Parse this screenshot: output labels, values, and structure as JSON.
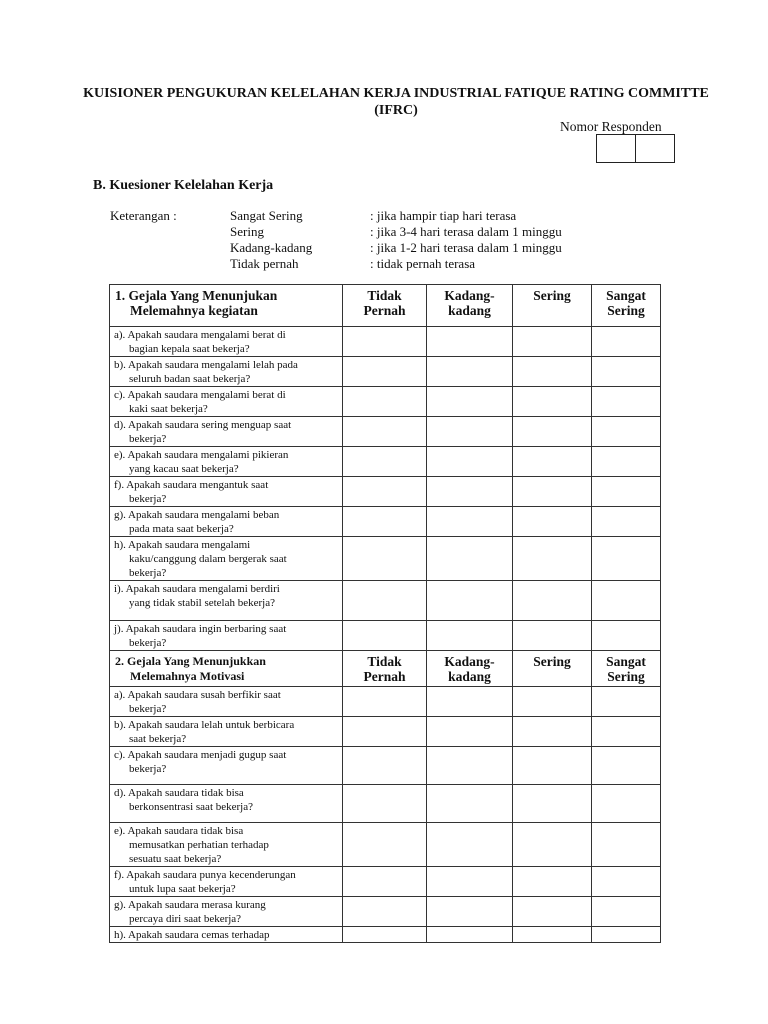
{
  "title_line1": "KUISIONER PENGUKURAN KELELAHAN KERJA INDUSTRIAL FATIQUE RATING COMMITTE",
  "title_line2": "(IFRC)",
  "respondent_label": "Nomor Responden",
  "section_b": "B. Kuesioner Kelelahan Kerja",
  "legend": {
    "label": "Keterangan :",
    "items": [
      {
        "term": "Sangat Sering",
        "desc": ": jika hampir tiap hari terasa"
      },
      {
        "term": "Sering",
        "desc": ": jika 3-4 hari terasa dalam 1 minggu"
      },
      {
        "term": "Kadang-kadang",
        "desc": ": jika 1-2 hari terasa dalam 1 minggu"
      },
      {
        "term": "Tidak pernah",
        "desc": ": tidak pernah terasa"
      }
    ]
  },
  "columns": [
    [
      "Tidak",
      "Pernah"
    ],
    [
      "Kadang-",
      "kadang"
    ],
    [
      "Sering",
      ""
    ],
    [
      "Sangat",
      "Sering"
    ]
  ],
  "sections": [
    {
      "heading": [
        "1. Gejala Yang Menunjukan",
        "Melemahnya kegiatan"
      ],
      "questions": [
        [
          "a). Apakah saudara mengalami berat di",
          "bagian kepala saat bekerja?"
        ],
        [
          "b). Apakah saudara mengalami lelah pada",
          "seluruh badan saat bekerja?"
        ],
        [
          "c). Apakah saudara mengalami berat di",
          "kaki saat bekerja?"
        ],
        [
          "d). Apakah saudara sering menguap saat",
          "bekerja?"
        ],
        [
          "e). Apakah saudara mengalami pikieran",
          "yang kacau saat bekerja?"
        ],
        [
          "f). Apakah saudara mengantuk saat",
          "bekerja?"
        ],
        [
          "g). Apakah saudara mengalami beban",
          "pada mata saat bekerja?"
        ],
        [
          "h). Apakah saudara mengalami",
          "kaku/canggung dalam bergerak saat",
          "bekerja?"
        ],
        [
          "i). Apakah saudara mengalami  berdiri",
          "yang tidak stabil setelah bekerja?"
        ],
        [
          "j). Apakah saudara ingin berbaring saat",
          "bekerja?"
        ]
      ]
    },
    {
      "heading": [
        "2. Gejala Yang Menunjukkan",
        "Melemahnya Motivasi"
      ],
      "questions": [
        [
          "a). Apakah saudara susah berfikir saat",
          "bekerja?"
        ],
        [
          "b). Apakah saudara lelah untuk berbicara",
          "saat bekerja?"
        ],
        [
          "c). Apakah saudara menjadi gugup saat",
          "bekerja?"
        ],
        [
          "d). Apakah saudara tidak bisa",
          "berkonsentrasi saat bekerja?"
        ],
        [
          "e). Apakah saudara tidak bisa",
          "memusatkan perhatian terhadap",
          "sesuatu saat bekerja?"
        ],
        [
          "f). Apakah saudara punya kecenderungan",
          "untuk lupa saat bekerja?"
        ],
        [
          "g). Apakah saudara merasa kurang",
          "percaya diri saat bekerja?"
        ],
        [
          "h). Apakah saudara cemas terhadap"
        ]
      ]
    }
  ]
}
